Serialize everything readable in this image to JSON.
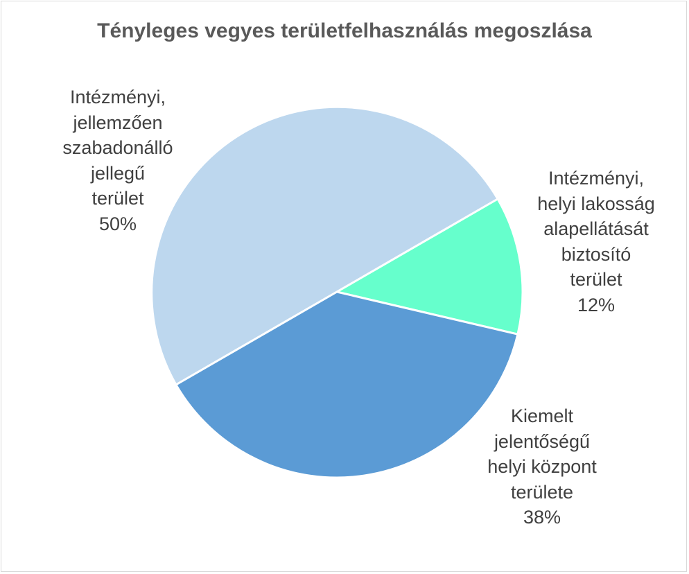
{
  "chart_data": {
    "type": "pie",
    "title": "Tényleges vegyes területfelhasználás megoszlása",
    "slices": [
      {
        "label_lines": [
          "Intézményi,",
          "jellemzően",
          "szabadonálló",
          "jellegű",
          "terület"
        ],
        "percent_label": "50%",
        "value": 50,
        "color": "#bdd7ee"
      },
      {
        "label_lines": [
          "Intézményi,",
          "helyi lakosság",
          "alapellátását",
          "biztosító",
          "terület"
        ],
        "percent_label": "12%",
        "value": 12,
        "color": "#66ffcc"
      },
      {
        "label_lines": [
          "Kiemelt",
          "jelentőségű",
          "helyi központ",
          "területe"
        ],
        "percent_label": "38%",
        "value": 38,
        "color": "#5b9bd5"
      }
    ],
    "legend": "none"
  }
}
